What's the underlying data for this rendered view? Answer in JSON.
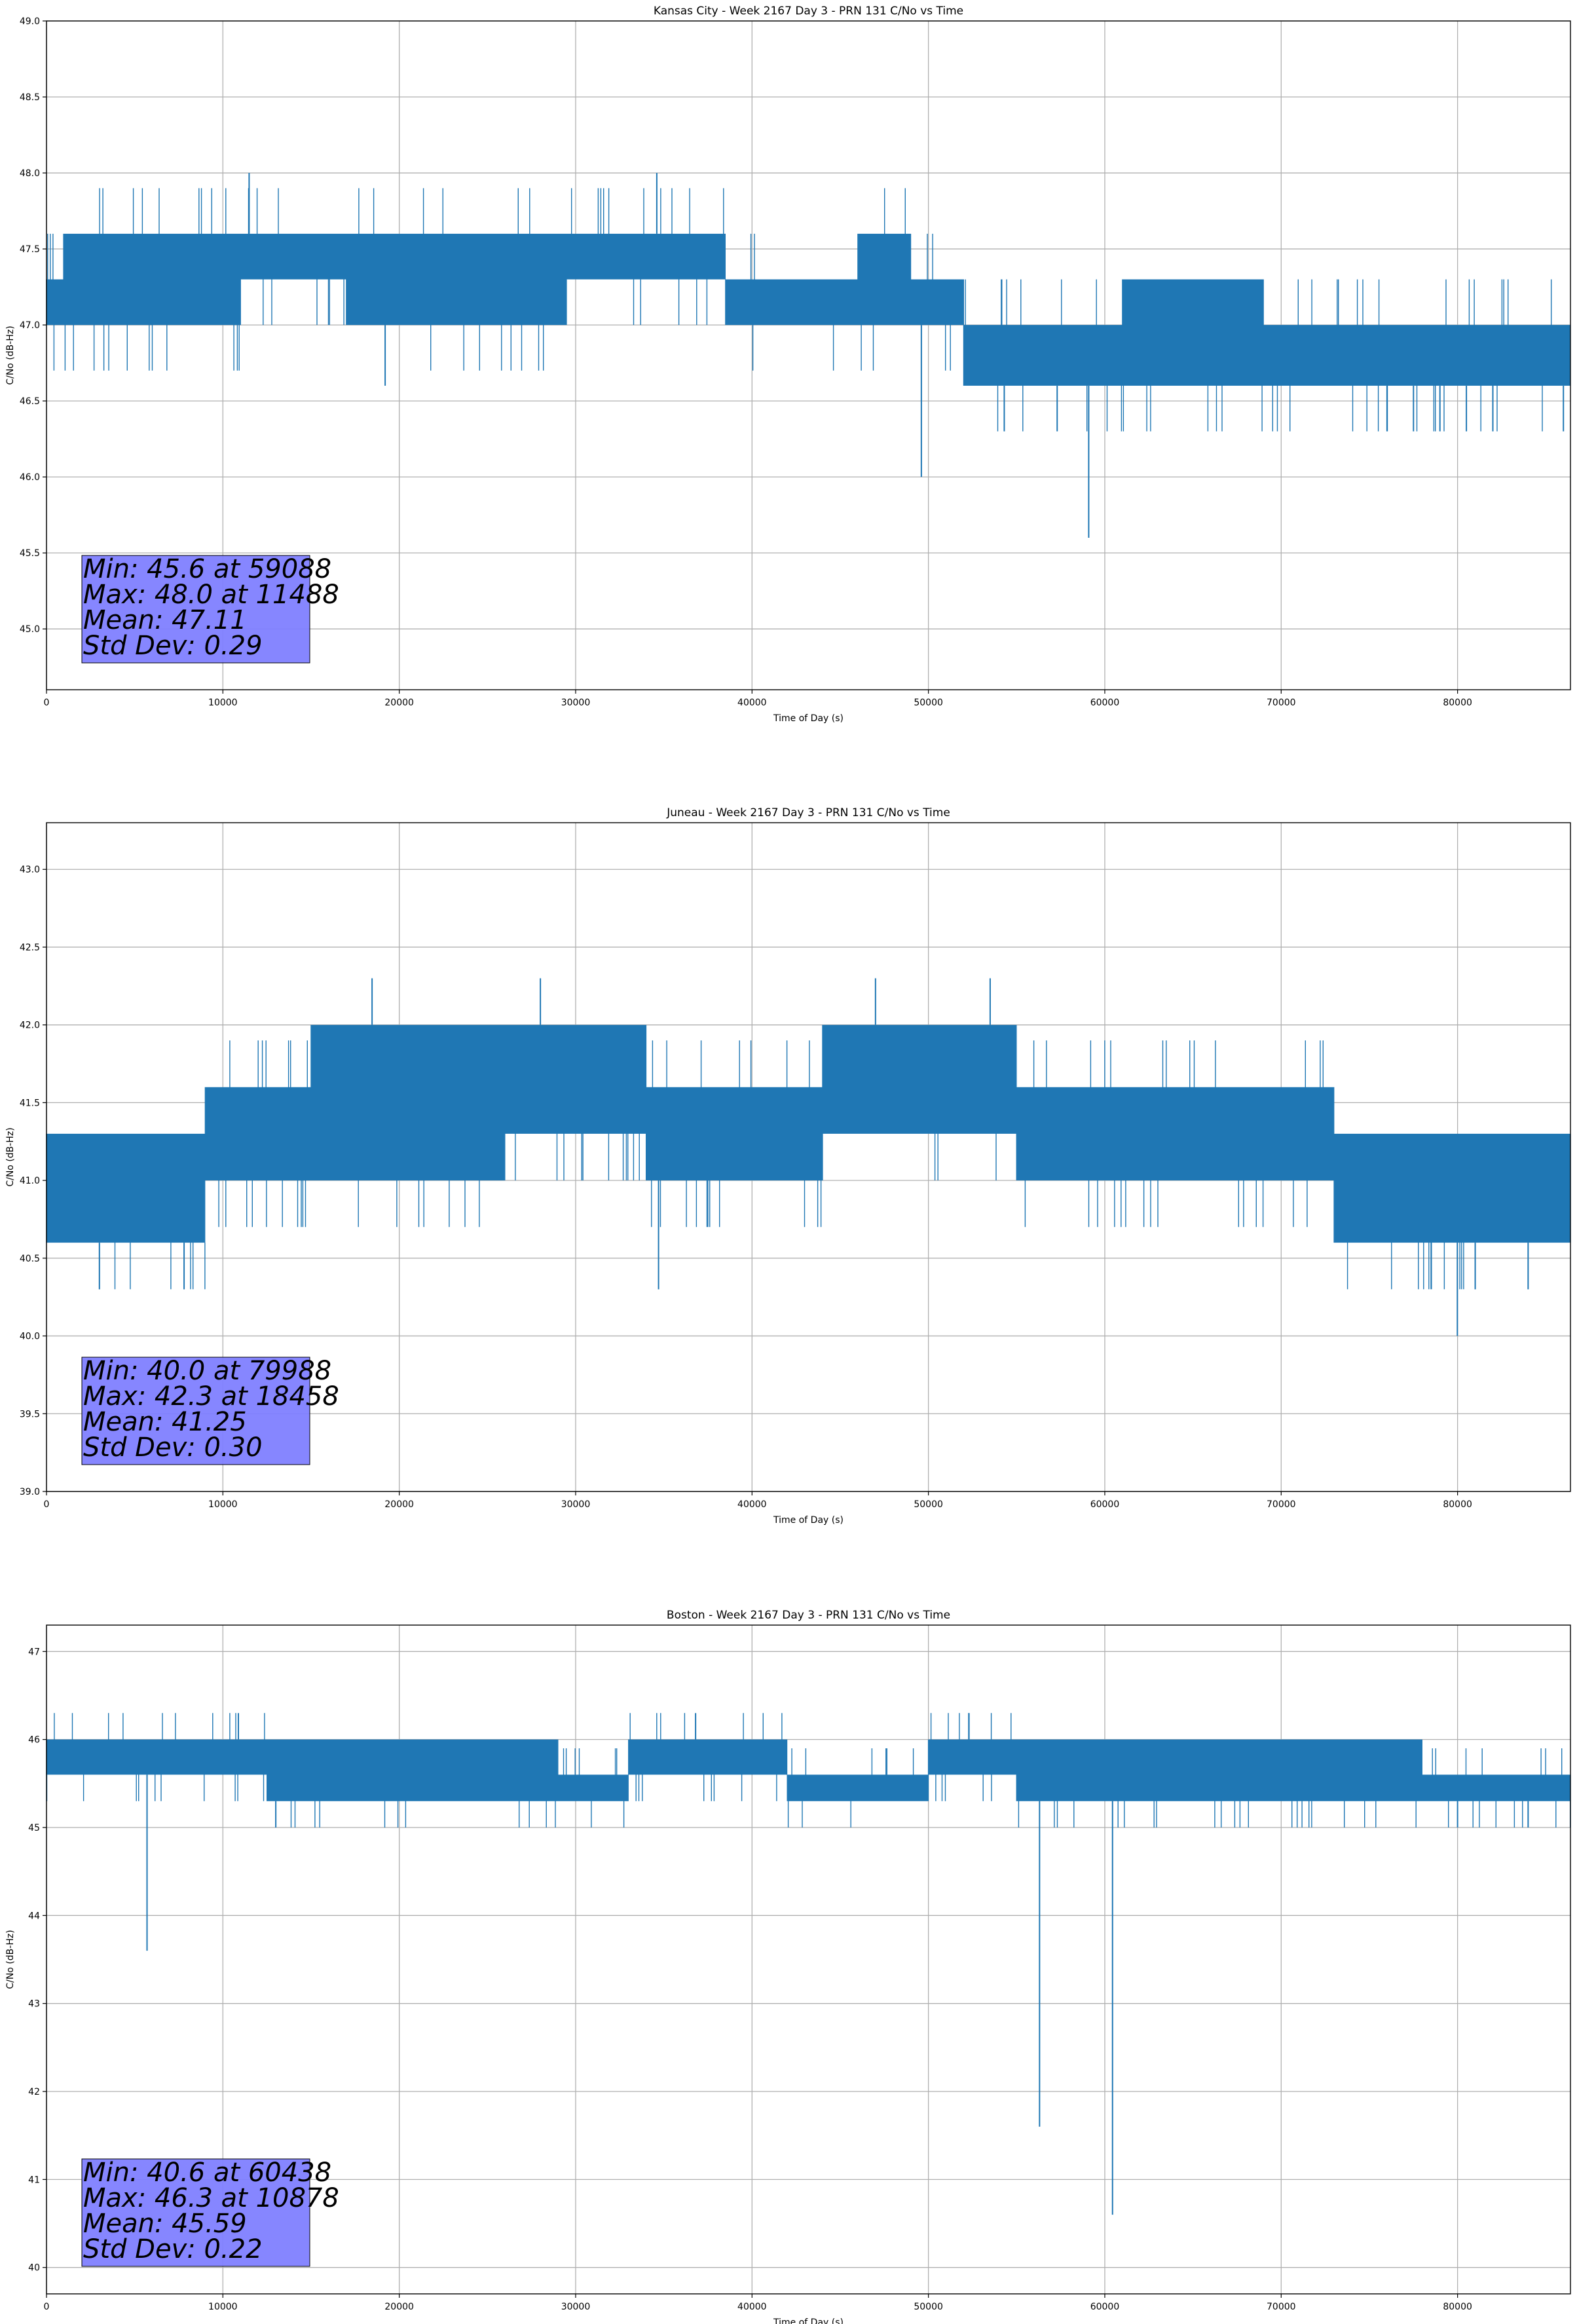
{
  "chart_data": [
    {
      "type": "line",
      "title": "Kansas City - Week 2167 Day 3 - PRN 131 C/No vs Time",
      "xlabel": "Time of Day (s)",
      "ylabel": "C/No (dB-Hz)",
      "xlim": [
        0,
        86400
      ],
      "ylim": [
        44.6,
        49.0
      ],
      "xticks": [
        0,
        10000,
        20000,
        30000,
        40000,
        50000,
        60000,
        70000,
        80000
      ],
      "yticks": [
        45.0,
        45.5,
        46.0,
        46.5,
        47.0,
        47.5,
        48.0,
        48.5,
        49.0
      ],
      "ytick_decimals": 1,
      "grid": true,
      "series_color": "#1f77b4",
      "segments": [
        {
          "x": [
            0,
            1000
          ],
          "lo": 47.0,
          "hi": 47.3
        },
        {
          "x": [
            1000,
            11000
          ],
          "lo": 47.0,
          "hi": 47.6
        },
        {
          "x": [
            11000,
            17000
          ],
          "lo": 47.3,
          "hi": 47.6
        },
        {
          "x": [
            17000,
            29500
          ],
          "lo": 47.0,
          "hi": 47.6
        },
        {
          "x": [
            29500,
            38500
          ],
          "lo": 47.3,
          "hi": 47.6
        },
        {
          "x": [
            38500,
            46000
          ],
          "lo": 47.0,
          "hi": 47.3
        },
        {
          "x": [
            46000,
            49000
          ],
          "lo": 47.0,
          "hi": 47.6
        },
        {
          "x": [
            49000,
            52000
          ],
          "lo": 47.0,
          "hi": 47.3
        },
        {
          "x": [
            52000,
            61000
          ],
          "lo": 46.6,
          "hi": 47.0
        },
        {
          "x": [
            61000,
            69000
          ],
          "lo": 46.6,
          "hi": 47.3
        },
        {
          "x": [
            69000,
            86400
          ],
          "lo": 46.6,
          "hi": 47.0
        }
      ],
      "spikes": [
        {
          "x": 11488,
          "y": 48.0
        },
        {
          "x": 34600,
          "y": 48.0
        },
        {
          "x": 19200,
          "y": 46.6
        },
        {
          "x": 49600,
          "y": 46.0
        },
        {
          "x": 54300,
          "y": 46.3
        },
        {
          "x": 57300,
          "y": 46.3
        },
        {
          "x": 59088,
          "y": 45.6
        },
        {
          "x": 76000,
          "y": 46.3
        },
        {
          "x": 77500,
          "y": 46.3
        },
        {
          "x": 79000,
          "y": 46.3
        },
        {
          "x": 80500,
          "y": 46.3
        },
        {
          "x": 82000,
          "y": 46.3
        },
        {
          "x": 86000,
          "y": 46.3
        }
      ],
      "stats": {
        "line1": "Min: 45.6 at 59088",
        "line2": "Max: 48.0 at 11488",
        "line3": "Mean: 47.11",
        "line4": "Std Dev: 0.29"
      },
      "stats_box_color": "#8080ff"
    },
    {
      "type": "line",
      "title": "Juneau - Week 2167 Day 3 - PRN 131 C/No vs Time",
      "xlabel": "Time of Day (s)",
      "ylabel": "C/No (dB-Hz)",
      "xlim": [
        0,
        86400
      ],
      "ylim": [
        39.0,
        43.3
      ],
      "xticks": [
        0,
        10000,
        20000,
        30000,
        40000,
        50000,
        60000,
        70000,
        80000
      ],
      "yticks": [
        39.0,
        39.5,
        40.0,
        40.5,
        41.0,
        41.5,
        42.0,
        42.5,
        43.0
      ],
      "ytick_decimals": 1,
      "grid": true,
      "series_color": "#1f77b4",
      "segments": [
        {
          "x": [
            0,
            9000
          ],
          "lo": 40.6,
          "hi": 41.3
        },
        {
          "x": [
            9000,
            15000
          ],
          "lo": 41.0,
          "hi": 41.6
        },
        {
          "x": [
            15000,
            26000
          ],
          "lo": 41.0,
          "hi": 42.0
        },
        {
          "x": [
            26000,
            34000
          ],
          "lo": 41.3,
          "hi": 42.0
        },
        {
          "x": [
            34000,
            44000
          ],
          "lo": 41.0,
          "hi": 41.6
        },
        {
          "x": [
            44000,
            55000
          ],
          "lo": 41.3,
          "hi": 42.0
        },
        {
          "x": [
            55000,
            73000
          ],
          "lo": 41.0,
          "hi": 41.6
        },
        {
          "x": [
            73000,
            86400
          ],
          "lo": 40.6,
          "hi": 41.3
        }
      ],
      "spikes": [
        {
          "x": 3000,
          "y": 40.3
        },
        {
          "x": 7800,
          "y": 40.3
        },
        {
          "x": 18458,
          "y": 42.3
        },
        {
          "x": 28000,
          "y": 42.3
        },
        {
          "x": 34700,
          "y": 40.3
        },
        {
          "x": 47000,
          "y": 42.3
        },
        {
          "x": 53500,
          "y": 42.3
        },
        {
          "x": 79988,
          "y": 40.0
        },
        {
          "x": 81000,
          "y": 40.3
        },
        {
          "x": 84000,
          "y": 40.3
        }
      ],
      "stats": {
        "line1": "Min: 40.0 at 79988",
        "line2": "Max: 42.3 at 18458",
        "line3": "Mean: 41.25",
        "line4": "Std Dev: 0.30"
      },
      "stats_box_color": "#8080ff"
    },
    {
      "type": "line",
      "title": "Boston - Week 2167 Day 3 - PRN 131 C/No vs Time",
      "xlabel": "Time of Day (s)",
      "ylabel": "C/No (dB-Hz)",
      "xlim": [
        0,
        86400
      ],
      "ylim": [
        39.7,
        47.3
      ],
      "xticks": [
        0,
        10000,
        20000,
        30000,
        40000,
        50000,
        60000,
        70000,
        80000
      ],
      "yticks": [
        40,
        41,
        42,
        43,
        44,
        45,
        46,
        47
      ],
      "ytick_decimals": 0,
      "grid": true,
      "series_color": "#1f77b4",
      "segments": [
        {
          "x": [
            0,
            12500
          ],
          "lo": 45.6,
          "hi": 46.0
        },
        {
          "x": [
            12500,
            29000
          ],
          "lo": 45.3,
          "hi": 46.0
        },
        {
          "x": [
            29000,
            33000
          ],
          "lo": 45.3,
          "hi": 45.6
        },
        {
          "x": [
            33000,
            42000
          ],
          "lo": 45.6,
          "hi": 46.0
        },
        {
          "x": [
            42000,
            50000
          ],
          "lo": 45.3,
          "hi": 45.6
        },
        {
          "x": [
            50000,
            55000
          ],
          "lo": 45.6,
          "hi": 46.0
        },
        {
          "x": [
            55000,
            78000
          ],
          "lo": 45.3,
          "hi": 46.0
        },
        {
          "x": [
            78000,
            86400
          ],
          "lo": 45.3,
          "hi": 45.6
        }
      ],
      "spikes": [
        {
          "x": 5700,
          "y": 43.6
        },
        {
          "x": 10878,
          "y": 46.3
        },
        {
          "x": 13000,
          "y": 45.0
        },
        {
          "x": 36800,
          "y": 46.3
        },
        {
          "x": 52300,
          "y": 46.3
        },
        {
          "x": 56300,
          "y": 41.6
        },
        {
          "x": 60438,
          "y": 40.6
        },
        {
          "x": 80000,
          "y": 45.0
        },
        {
          "x": 84000,
          "y": 45.0
        }
      ],
      "stats": {
        "line1": "Min: 40.6 at 60438",
        "line2": "Max: 46.3 at 10878",
        "line3": "Mean: 45.59",
        "line4": "Std Dev: 0.22"
      },
      "stats_box_color": "#8080ff"
    }
  ]
}
